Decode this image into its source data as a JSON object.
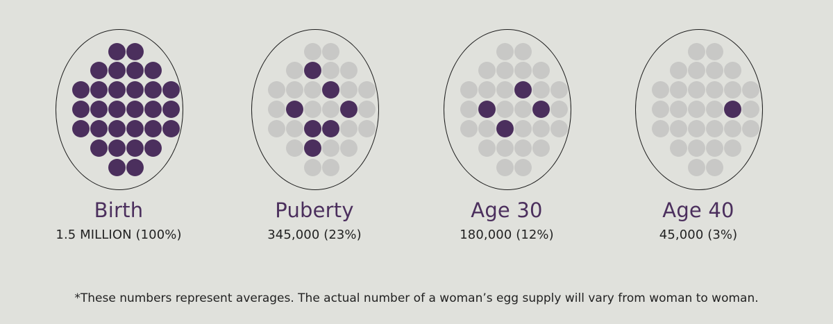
{
  "colors": {
    "background": "#e0e1dc",
    "filled_dot": "#4b2f5d",
    "empty_dot": "#c8c8c6",
    "title_text": "#4b2f5d",
    "body_text": "#222222"
  },
  "stages": [
    {
      "title": "Birth",
      "value": "1.5 MILLION (100%)",
      "filled_share": 1.0
    },
    {
      "title": "Puberty",
      "value": "345,000 (23%)",
      "filled_share": 0.23
    },
    {
      "title": "Age 30",
      "value": "180,000 (12%)",
      "filled_share": 0.12
    },
    {
      "title": "Age 40",
      "value": "45,000 (3%)",
      "filled_share": 0.03
    }
  ],
  "footnote": "*These numbers represent averages. The actual number of a woman’s egg supply will vary from woman to woman."
}
